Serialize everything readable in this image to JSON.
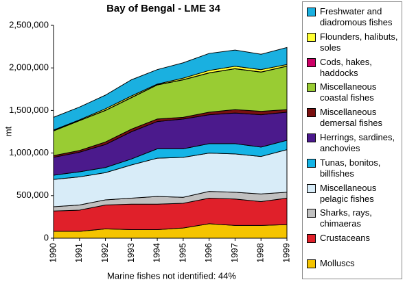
{
  "chart_data": {
    "type": "stacked_area",
    "title": "Bay of Bengal - LME 34",
    "ylabel": "mt",
    "annotation": "Marine fishes not identified: 44%",
    "categories": [
      "1990",
      "1991",
      "1992",
      "1993",
      "1994",
      "1995",
      "1996",
      "1997",
      "1998",
      "1999"
    ],
    "ylim": [
      0,
      2500000
    ],
    "yticks": [
      0,
      {
        "value": 500000,
        "label": "500,000"
      },
      {
        "value": 1000000,
        "label": "1,000,000"
      },
      {
        "value": 1500000,
        "label": "1,500,000"
      },
      {
        "value": 2000000,
        "label": "2,000,000"
      },
      {
        "value": 2500000,
        "label": "2,500,000"
      }
    ],
    "series": [
      {
        "name": "Freshwater and diadromous fishes",
        "color": "#1ab0e0",
        "values": [
          150000,
          150000,
          160000,
          190000,
          170000,
          180000,
          200000,
          190000,
          180000,
          200000
        ]
      },
      {
        "name": "Flounders, halibuts, soles",
        "color": "#ffff33",
        "values": [
          8000,
          8000,
          18000,
          18000,
          8000,
          18000,
          28000,
          28000,
          28000,
          18000
        ]
      },
      {
        "name": "Cods, hakes, haddocks",
        "color": "#cc0066",
        "values": [
          2000,
          2000,
          2000,
          2000,
          2000,
          2000,
          2000,
          2000,
          2000,
          2000
        ]
      },
      {
        "name": "Miscellaneous coastal fishes",
        "color": "#99cc33",
        "values": [
          290000,
          350000,
          370000,
          370000,
          400000,
          440000,
          460000,
          480000,
          460000,
          510000
        ]
      },
      {
        "name": "Miscellaneous demersal fishes",
        "color": "#7a1010",
        "values": [
          20000,
          20000,
          30000,
          30000,
          30000,
          20000,
          30000,
          40000,
          40000,
          30000
        ]
      },
      {
        "name": "Herrings, sardines, anchovies",
        "color": "#4b1a8c",
        "values": [
          210000,
          230000,
          270000,
          320000,
          320000,
          350000,
          340000,
          360000,
          380000,
          330000
        ]
      },
      {
        "name": "Tunas, bonitos, billfishes",
        "color": "#14b4e6",
        "values": [
          50000,
          60000,
          60000,
          70000,
          110000,
          100000,
          110000,
          120000,
          110000,
          110000
        ]
      },
      {
        "name": "Miscellaneous pelagic fishes",
        "color": "#d8ecf8",
        "values": [
          320000,
          330000,
          320000,
          390000,
          450000,
          470000,
          450000,
          450000,
          440000,
          500000
        ]
      },
      {
        "name": "Sharks, rays, chimaeras",
        "color": "#c0c0c0",
        "values": [
          50000,
          60000,
          60000,
          70000,
          90000,
          70000,
          80000,
          80000,
          90000,
          70000
        ]
      },
      {
        "name": "Crustaceans",
        "color": "#e0202a",
        "values": [
          240000,
          250000,
          280000,
          300000,
          300000,
          290000,
          300000,
          310000,
          280000,
          310000
        ]
      },
      {
        "name": "Molluscs",
        "color": "#f5c400",
        "values": [
          80000,
          80000,
          110000,
          100000,
          100000,
          120000,
          170000,
          150000,
          150000,
          160000
        ]
      }
    ]
  }
}
